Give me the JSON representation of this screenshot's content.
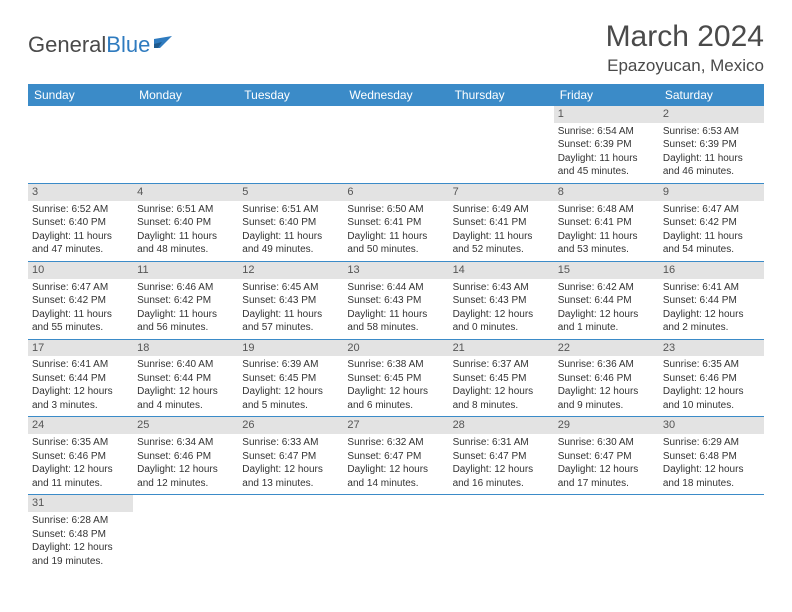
{
  "logo": {
    "general": "General",
    "blue": "Blue"
  },
  "title": "March 2024",
  "location": "Epazoyucan, Mexico",
  "colors": {
    "header_bg": "#3b8bc8",
    "header_fg": "#ffffff",
    "row_divider": "#3b8bc8",
    "daynum_bg": "#e3e3e3",
    "text": "#333333",
    "logo_blue": "#2f7bbf",
    "logo_gray": "#4a4a4a"
  },
  "day_headers": [
    "Sunday",
    "Monday",
    "Tuesday",
    "Wednesday",
    "Thursday",
    "Friday",
    "Saturday"
  ],
  "weeks": [
    [
      {
        "n": "",
        "sr": "",
        "ss": "",
        "d1": "",
        "d2": ""
      },
      {
        "n": "",
        "sr": "",
        "ss": "",
        "d1": "",
        "d2": ""
      },
      {
        "n": "",
        "sr": "",
        "ss": "",
        "d1": "",
        "d2": ""
      },
      {
        "n": "",
        "sr": "",
        "ss": "",
        "d1": "",
        "d2": ""
      },
      {
        "n": "",
        "sr": "",
        "ss": "",
        "d1": "",
        "d2": ""
      },
      {
        "n": "1",
        "sr": "Sunrise: 6:54 AM",
        "ss": "Sunset: 6:39 PM",
        "d1": "Daylight: 11 hours",
        "d2": "and 45 minutes."
      },
      {
        "n": "2",
        "sr": "Sunrise: 6:53 AM",
        "ss": "Sunset: 6:39 PM",
        "d1": "Daylight: 11 hours",
        "d2": "and 46 minutes."
      }
    ],
    [
      {
        "n": "3",
        "sr": "Sunrise: 6:52 AM",
        "ss": "Sunset: 6:40 PM",
        "d1": "Daylight: 11 hours",
        "d2": "and 47 minutes."
      },
      {
        "n": "4",
        "sr": "Sunrise: 6:51 AM",
        "ss": "Sunset: 6:40 PM",
        "d1": "Daylight: 11 hours",
        "d2": "and 48 minutes."
      },
      {
        "n": "5",
        "sr": "Sunrise: 6:51 AM",
        "ss": "Sunset: 6:40 PM",
        "d1": "Daylight: 11 hours",
        "d2": "and 49 minutes."
      },
      {
        "n": "6",
        "sr": "Sunrise: 6:50 AM",
        "ss": "Sunset: 6:41 PM",
        "d1": "Daylight: 11 hours",
        "d2": "and 50 minutes."
      },
      {
        "n": "7",
        "sr": "Sunrise: 6:49 AM",
        "ss": "Sunset: 6:41 PM",
        "d1": "Daylight: 11 hours",
        "d2": "and 52 minutes."
      },
      {
        "n": "8",
        "sr": "Sunrise: 6:48 AM",
        "ss": "Sunset: 6:41 PM",
        "d1": "Daylight: 11 hours",
        "d2": "and 53 minutes."
      },
      {
        "n": "9",
        "sr": "Sunrise: 6:47 AM",
        "ss": "Sunset: 6:42 PM",
        "d1": "Daylight: 11 hours",
        "d2": "and 54 minutes."
      }
    ],
    [
      {
        "n": "10",
        "sr": "Sunrise: 6:47 AM",
        "ss": "Sunset: 6:42 PM",
        "d1": "Daylight: 11 hours",
        "d2": "and 55 minutes."
      },
      {
        "n": "11",
        "sr": "Sunrise: 6:46 AM",
        "ss": "Sunset: 6:42 PM",
        "d1": "Daylight: 11 hours",
        "d2": "and 56 minutes."
      },
      {
        "n": "12",
        "sr": "Sunrise: 6:45 AM",
        "ss": "Sunset: 6:43 PM",
        "d1": "Daylight: 11 hours",
        "d2": "and 57 minutes."
      },
      {
        "n": "13",
        "sr": "Sunrise: 6:44 AM",
        "ss": "Sunset: 6:43 PM",
        "d1": "Daylight: 11 hours",
        "d2": "and 58 minutes."
      },
      {
        "n": "14",
        "sr": "Sunrise: 6:43 AM",
        "ss": "Sunset: 6:43 PM",
        "d1": "Daylight: 12 hours",
        "d2": "and 0 minutes."
      },
      {
        "n": "15",
        "sr": "Sunrise: 6:42 AM",
        "ss": "Sunset: 6:44 PM",
        "d1": "Daylight: 12 hours",
        "d2": "and 1 minute."
      },
      {
        "n": "16",
        "sr": "Sunrise: 6:41 AM",
        "ss": "Sunset: 6:44 PM",
        "d1": "Daylight: 12 hours",
        "d2": "and 2 minutes."
      }
    ],
    [
      {
        "n": "17",
        "sr": "Sunrise: 6:41 AM",
        "ss": "Sunset: 6:44 PM",
        "d1": "Daylight: 12 hours",
        "d2": "and 3 minutes."
      },
      {
        "n": "18",
        "sr": "Sunrise: 6:40 AM",
        "ss": "Sunset: 6:44 PM",
        "d1": "Daylight: 12 hours",
        "d2": "and 4 minutes."
      },
      {
        "n": "19",
        "sr": "Sunrise: 6:39 AM",
        "ss": "Sunset: 6:45 PM",
        "d1": "Daylight: 12 hours",
        "d2": "and 5 minutes."
      },
      {
        "n": "20",
        "sr": "Sunrise: 6:38 AM",
        "ss": "Sunset: 6:45 PM",
        "d1": "Daylight: 12 hours",
        "d2": "and 6 minutes."
      },
      {
        "n": "21",
        "sr": "Sunrise: 6:37 AM",
        "ss": "Sunset: 6:45 PM",
        "d1": "Daylight: 12 hours",
        "d2": "and 8 minutes."
      },
      {
        "n": "22",
        "sr": "Sunrise: 6:36 AM",
        "ss": "Sunset: 6:46 PM",
        "d1": "Daylight: 12 hours",
        "d2": "and 9 minutes."
      },
      {
        "n": "23",
        "sr": "Sunrise: 6:35 AM",
        "ss": "Sunset: 6:46 PM",
        "d1": "Daylight: 12 hours",
        "d2": "and 10 minutes."
      }
    ],
    [
      {
        "n": "24",
        "sr": "Sunrise: 6:35 AM",
        "ss": "Sunset: 6:46 PM",
        "d1": "Daylight: 12 hours",
        "d2": "and 11 minutes."
      },
      {
        "n": "25",
        "sr": "Sunrise: 6:34 AM",
        "ss": "Sunset: 6:46 PM",
        "d1": "Daylight: 12 hours",
        "d2": "and 12 minutes."
      },
      {
        "n": "26",
        "sr": "Sunrise: 6:33 AM",
        "ss": "Sunset: 6:47 PM",
        "d1": "Daylight: 12 hours",
        "d2": "and 13 minutes."
      },
      {
        "n": "27",
        "sr": "Sunrise: 6:32 AM",
        "ss": "Sunset: 6:47 PM",
        "d1": "Daylight: 12 hours",
        "d2": "and 14 minutes."
      },
      {
        "n": "28",
        "sr": "Sunrise: 6:31 AM",
        "ss": "Sunset: 6:47 PM",
        "d1": "Daylight: 12 hours",
        "d2": "and 16 minutes."
      },
      {
        "n": "29",
        "sr": "Sunrise: 6:30 AM",
        "ss": "Sunset: 6:47 PM",
        "d1": "Daylight: 12 hours",
        "d2": "and 17 minutes."
      },
      {
        "n": "30",
        "sr": "Sunrise: 6:29 AM",
        "ss": "Sunset: 6:48 PM",
        "d1": "Daylight: 12 hours",
        "d2": "and 18 minutes."
      }
    ],
    [
      {
        "n": "31",
        "sr": "Sunrise: 6:28 AM",
        "ss": "Sunset: 6:48 PM",
        "d1": "Daylight: 12 hours",
        "d2": "and 19 minutes."
      },
      {
        "n": "",
        "sr": "",
        "ss": "",
        "d1": "",
        "d2": ""
      },
      {
        "n": "",
        "sr": "",
        "ss": "",
        "d1": "",
        "d2": ""
      },
      {
        "n": "",
        "sr": "",
        "ss": "",
        "d1": "",
        "d2": ""
      },
      {
        "n": "",
        "sr": "",
        "ss": "",
        "d1": "",
        "d2": ""
      },
      {
        "n": "",
        "sr": "",
        "ss": "",
        "d1": "",
        "d2": ""
      },
      {
        "n": "",
        "sr": "",
        "ss": "",
        "d1": "",
        "d2": ""
      }
    ]
  ]
}
